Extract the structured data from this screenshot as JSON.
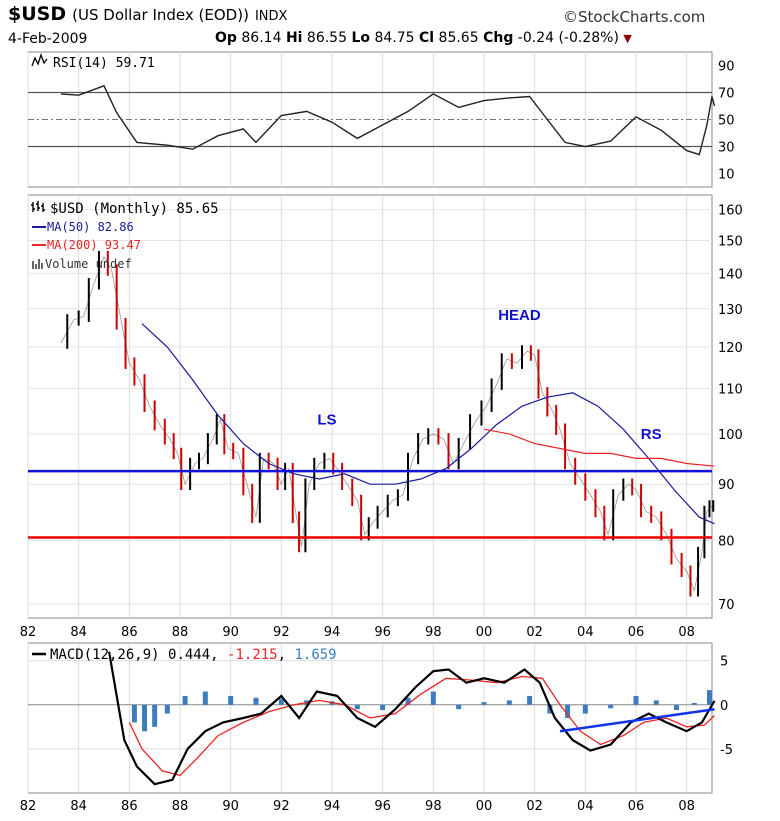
{
  "header": {
    "symbol": "$USD",
    "name": "(US Dollar Index (EOD))",
    "exchange": "INDX",
    "watermark": "©StockCharts.com",
    "date": "4-Feb-2009",
    "open_label": "Op",
    "open": "86.14",
    "high_label": "Hi",
    "high": "86.55",
    "low_label": "Lo",
    "low": "84.75",
    "close_label": "Cl",
    "close": "85.65",
    "change_label": "Chg",
    "change": "-0.24 (-0.28%)",
    "change_arrow": "▼"
  },
  "colors": {
    "price_up": "#000000",
    "price_down": "#cc0000",
    "ma50": "#1a1a9c",
    "ma200": "#ee2222",
    "support": "#ee0000",
    "neckline": "#1111dd",
    "macd_hist": "#3d7dbf",
    "signal": "#ee2222",
    "trendline": "#1133ee"
  },
  "panels": {
    "rsi": {
      "legend": "RSI(14) 59.71",
      "levels": [
        "90",
        "70",
        "50",
        "30",
        "10"
      ]
    },
    "price": {
      "legend_main": "$USD (Monthly) 85.65",
      "legend_ma50": "MA(50) 82.86",
      "legend_ma200": "MA(200) 93.47",
      "legend_volume": "Volume undef",
      "y_ticks": [
        "160",
        "150",
        "140",
        "130",
        "120",
        "110",
        "100",
        "90",
        "80",
        "70"
      ],
      "annotations": {
        "ls": "LS",
        "head": "HEAD",
        "rs": "RS"
      }
    },
    "macd": {
      "legend_name": "MACD(12,26,9)",
      "legend_macd": "0.444",
      "legend_signal": "-1.215",
      "legend_hist": "1.659",
      "y_ticks": [
        "5",
        "0",
        "-5"
      ]
    },
    "x_ticks": [
      "82",
      "84",
      "86",
      "88",
      "90",
      "92",
      "94",
      "96",
      "98",
      "00",
      "02",
      "04",
      "06",
      "08"
    ]
  },
  "chart_data": {
    "type": "line",
    "title": "$USD (US Dollar Index (EOD)) INDX",
    "x_range": [
      1982,
      2009
    ],
    "price": {
      "ylim": [
        68,
        165
      ],
      "close": [
        [
          1983.3,
          121
        ],
        [
          1983.8,
          127
        ],
        [
          1984.2,
          128
        ],
        [
          1984.6,
          137
        ],
        [
          1985.0,
          145
        ],
        [
          1985.3,
          141
        ],
        [
          1985.7,
          126
        ],
        [
          1986.0,
          116
        ],
        [
          1986.4,
          112
        ],
        [
          1986.8,
          106
        ],
        [
          1987.2,
          102
        ],
        [
          1987.6,
          99
        ],
        [
          1987.9,
          96
        ],
        [
          1988.2,
          90
        ],
        [
          1988.6,
          94
        ],
        [
          1988.9,
          95
        ],
        [
          1989.3,
          99
        ],
        [
          1989.6,
          103
        ],
        [
          1989.9,
          97
        ],
        [
          1990.3,
          96
        ],
        [
          1990.7,
          89
        ],
        [
          1991.0,
          84
        ],
        [
          1991.3,
          95
        ],
        [
          1991.7,
          94
        ],
        [
          1992.0,
          90
        ],
        [
          1992.3,
          93
        ],
        [
          1992.6,
          84
        ],
        [
          1992.8,
          79
        ],
        [
          1993.1,
          90
        ],
        [
          1993.5,
          94
        ],
        [
          1993.9,
          95
        ],
        [
          1994.2,
          93
        ],
        [
          1994.6,
          90
        ],
        [
          1995.0,
          87
        ],
        [
          1995.3,
          81
        ],
        [
          1995.6,
          83
        ],
        [
          1996.0,
          85
        ],
        [
          1996.4,
          87
        ],
        [
          1996.8,
          88
        ],
        [
          1997.2,
          95
        ],
        [
          1997.6,
          99
        ],
        [
          1998.0,
          100
        ],
        [
          1998.4,
          99
        ],
        [
          1998.8,
          94
        ],
        [
          1999.2,
          98
        ],
        [
          1999.7,
          103
        ],
        [
          2000.1,
          106
        ],
        [
          2000.5,
          111
        ],
        [
          2000.9,
          117
        ],
        [
          2001.3,
          116
        ],
        [
          2001.7,
          119
        ],
        [
          2002.0,
          118
        ],
        [
          2002.3,
          109
        ],
        [
          2002.7,
          105
        ],
        [
          2003.0,
          101
        ],
        [
          2003.4,
          94
        ],
        [
          2003.8,
          91
        ],
        [
          2004.2,
          88
        ],
        [
          2004.6,
          85
        ],
        [
          2004.9,
          81
        ],
        [
          2005.3,
          88
        ],
        [
          2005.7,
          90
        ],
        [
          2006.0,
          89
        ],
        [
          2006.4,
          85
        ],
        [
          2006.8,
          84
        ],
        [
          2007.2,
          81
        ],
        [
          2007.6,
          77
        ],
        [
          2008.0,
          75
        ],
        [
          2008.3,
          72
        ],
        [
          2008.6,
          78
        ],
        [
          2008.8,
          85
        ],
        [
          2009.0,
          86
        ],
        [
          2009.1,
          86
        ]
      ],
      "ma50": [
        [
          1986.5,
          126
        ],
        [
          1987.5,
          120
        ],
        [
          1988.5,
          112
        ],
        [
          1989.5,
          104
        ],
        [
          1990.5,
          98
        ],
        [
          1991.5,
          94
        ],
        [
          1992.5,
          92
        ],
        [
          1993.5,
          91
        ],
        [
          1994.5,
          92
        ],
        [
          1995.5,
          90
        ],
        [
          1996.5,
          90
        ],
        [
          1997.5,
          91
        ],
        [
          1998.5,
          93
        ],
        [
          1999.5,
          97
        ],
        [
          2000.5,
          102
        ],
        [
          2001.5,
          106
        ],
        [
          2002.5,
          108
        ],
        [
          2003.5,
          109
        ],
        [
          2004.5,
          106
        ],
        [
          2005.5,
          101
        ],
        [
          2006.5,
          95
        ],
        [
          2007.5,
          89
        ],
        [
          2008.5,
          84
        ],
        [
          2009.1,
          82.86
        ]
      ],
      "ma200": [
        [
          2000.0,
          101
        ],
        [
          2001.0,
          100
        ],
        [
          2002.0,
          98
        ],
        [
          2003.0,
          97
        ],
        [
          2004.0,
          96
        ],
        [
          2005.0,
          96
        ],
        [
          2006.0,
          95
        ],
        [
          2007.0,
          95
        ],
        [
          2008.0,
          94
        ],
        [
          2009.1,
          93.47
        ]
      ],
      "lines": {
        "neckline": 92.5,
        "support": 80.5
      },
      "annotations": [
        {
          "label": "LS",
          "x": 1993.8,
          "y": 102
        },
        {
          "label": "HEAD",
          "x": 2001.4,
          "y": 127
        },
        {
          "label": "RS",
          "x": 2006.6,
          "y": 99
        }
      ]
    },
    "rsi": {
      "ylim": [
        0,
        100
      ],
      "values": [
        [
          1983.3,
          69
        ],
        [
          1984.0,
          68
        ],
        [
          1985.0,
          75
        ],
        [
          1985.5,
          55
        ],
        [
          1986.3,
          33
        ],
        [
          1987.5,
          31
        ],
        [
          1988.5,
          28
        ],
        [
          1989.5,
          38
        ],
        [
          1990.5,
          43
        ],
        [
          1991.0,
          33
        ],
        [
          1992.0,
          53
        ],
        [
          1993.0,
          56
        ],
        [
          1994.0,
          48
        ],
        [
          1995.0,
          36
        ],
        [
          1996.0,
          46
        ],
        [
          1997.0,
          56
        ],
        [
          1998.0,
          69
        ],
        [
          1999.0,
          59
        ],
        [
          2000.0,
          64
        ],
        [
          2001.0,
          66
        ],
        [
          2001.8,
          67
        ],
        [
          2002.5,
          50
        ],
        [
          2003.2,
          33
        ],
        [
          2004.0,
          30
        ],
        [
          2005.0,
          34
        ],
        [
          2006.0,
          52
        ],
        [
          2007.0,
          42
        ],
        [
          2008.0,
          27
        ],
        [
          2008.5,
          24
        ],
        [
          2008.8,
          46
        ],
        [
          2009.0,
          67
        ],
        [
          2009.1,
          60
        ]
      ]
    },
    "macd": {
      "ylim": [
        -10,
        7
      ],
      "macd": [
        [
          1985.2,
          6
        ],
        [
          1985.8,
          -4
        ],
        [
          1986.3,
          -7
        ],
        [
          1987.0,
          -9
        ],
        [
          1987.7,
          -8.5
        ],
        [
          1988.3,
          -5
        ],
        [
          1989.0,
          -3
        ],
        [
          1989.7,
          -2
        ],
        [
          1990.5,
          -1.5
        ],
        [
          1991.2,
          -1
        ],
        [
          1992.0,
          1
        ],
        [
          1992.7,
          -1.5
        ],
        [
          1993.4,
          1.5
        ],
        [
          1994.2,
          1
        ],
        [
          1995.0,
          -1.5
        ],
        [
          1995.7,
          -2.5
        ],
        [
          1996.5,
          -0.5
        ],
        [
          1997.3,
          2
        ],
        [
          1998.0,
          3.8
        ],
        [
          1998.6,
          4
        ],
        [
          1999.3,
          2.5
        ],
        [
          2000.0,
          3
        ],
        [
          2000.8,
          2.5
        ],
        [
          2001.6,
          4
        ],
        [
          2002.2,
          2.5
        ],
        [
          2002.8,
          -1.5
        ],
        [
          2003.5,
          -4
        ],
        [
          2004.2,
          -5.2
        ],
        [
          2005.0,
          -4.5
        ],
        [
          2005.8,
          -2
        ],
        [
          2006.5,
          -1
        ],
        [
          2007.2,
          -2
        ],
        [
          2008.0,
          -3
        ],
        [
          2008.6,
          -2
        ],
        [
          2009.1,
          0.444
        ]
      ],
      "signal": [
        [
          1986.0,
          -2
        ],
        [
          1986.5,
          -5
        ],
        [
          1987.3,
          -7.5
        ],
        [
          1988.0,
          -8
        ],
        [
          1988.7,
          -6
        ],
        [
          1989.5,
          -3.5
        ],
        [
          1990.5,
          -2
        ],
        [
          1991.5,
          -0.8
        ],
        [
          1992.5,
          0
        ],
        [
          1993.5,
          0.5
        ],
        [
          1994.5,
          0
        ],
        [
          1995.5,
          -1.5
        ],
        [
          1996.5,
          -1
        ],
        [
          1997.5,
          1.2
        ],
        [
          1998.5,
          3
        ],
        [
          1999.5,
          2.8
        ],
        [
          2000.5,
          2.5
        ],
        [
          2001.5,
          3.2
        ],
        [
          2002.3,
          3
        ],
        [
          2003.0,
          0
        ],
        [
          2003.8,
          -3
        ],
        [
          2004.6,
          -4.5
        ],
        [
          2005.5,
          -3.5
        ],
        [
          2006.3,
          -2
        ],
        [
          2007.2,
          -1.5
        ],
        [
          2008.0,
          -2.5
        ],
        [
          2008.7,
          -2.3
        ],
        [
          2009.1,
          -1.215
        ]
      ],
      "histogram": [
        [
          1986.2,
          -2
        ],
        [
          1986.6,
          -3
        ],
        [
          1987.0,
          -2.5
        ],
        [
          1987.5,
          -1
        ],
        [
          1988.2,
          1
        ],
        [
          1989.0,
          1.5
        ],
        [
          1990.0,
          1
        ],
        [
          1991.0,
          0.8
        ],
        [
          1992.0,
          0.7
        ],
        [
          1993.0,
          0.5
        ],
        [
          1994.0,
          0.4
        ],
        [
          1995.0,
          -0.5
        ],
        [
          1996.0,
          -0.6
        ],
        [
          1997.0,
          0.8
        ],
        [
          1998.0,
          1.5
        ],
        [
          1999.0,
          -0.5
        ],
        [
          2000.0,
          0.3
        ],
        [
          2001.0,
          0.5
        ],
        [
          2001.8,
          1
        ],
        [
          2002.6,
          -1
        ],
        [
          2003.3,
          -1.5
        ],
        [
          2004.0,
          -1
        ],
        [
          2005.0,
          -0.4
        ],
        [
          2006.0,
          1
        ],
        [
          2006.8,
          0.5
        ],
        [
          2007.6,
          -0.6
        ],
        [
          2008.3,
          0.2
        ],
        [
          2008.9,
          1.659
        ]
      ],
      "trendline": [
        [
          2003.0,
          -3
        ],
        [
          2009.1,
          -0.5
        ]
      ]
    }
  }
}
